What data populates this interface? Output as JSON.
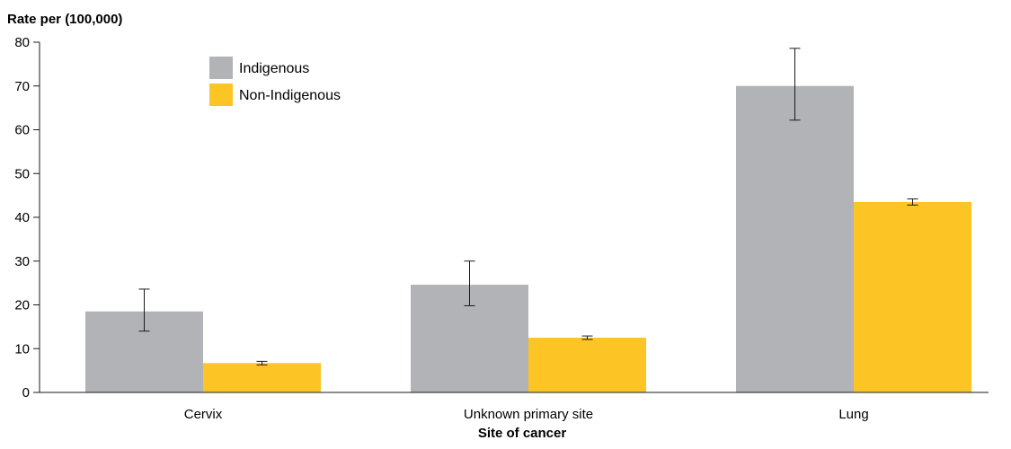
{
  "chart_data": {
    "type": "bar",
    "ylabel": "Rate per (100,000)",
    "xlabel": "Site of cancer",
    "categories": [
      "Cervix",
      "Unknown primary site",
      "Lung"
    ],
    "ylim": [
      0,
      80
    ],
    "yticks": [
      0,
      10,
      20,
      30,
      40,
      50,
      60,
      70,
      80
    ],
    "grid": false,
    "legend_position": "top-left",
    "series": [
      {
        "name": "Indigenous",
        "color": "#b1b3b6",
        "values": [
          18.5,
          24.6,
          70.0
        ],
        "error_low": [
          14.0,
          19.8,
          62.2
        ],
        "error_high": [
          23.6,
          30.0,
          78.6
        ]
      },
      {
        "name": "Non-Indigenous",
        "color": "#fcc425",
        "values": [
          6.7,
          12.5,
          43.5
        ],
        "error_low": [
          6.3,
          12.1,
          42.8
        ],
        "error_high": [
          7.1,
          12.9,
          44.2
        ]
      }
    ]
  }
}
